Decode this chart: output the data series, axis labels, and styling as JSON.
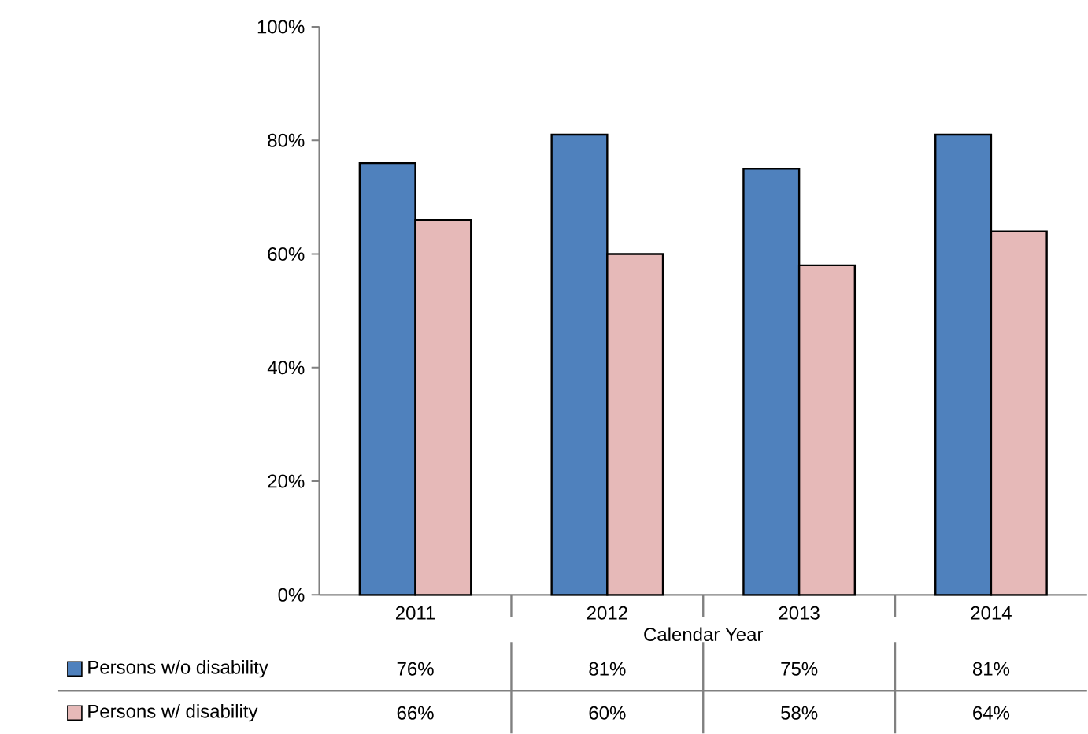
{
  "chart_data": {
    "type": "bar",
    "xlabel": "Calendar Year",
    "categories": [
      "2011",
      "2012",
      "2013",
      "2014"
    ],
    "series": [
      {
        "name": "Persons w/o disability",
        "color": "#4f81bd",
        "values": [
          76,
          81,
          75,
          81
        ],
        "value_labels": [
          "76%",
          "81%",
          "75%",
          "81%"
        ]
      },
      {
        "name": "Persons w/ disability",
        "color": "#e6b9b8",
        "values": [
          66,
          60,
          58,
          64
        ],
        "value_labels": [
          "66%",
          "60%",
          "58%",
          "64%"
        ]
      }
    ],
    "ylim": [
      0,
      100
    ],
    "yticks": [
      {
        "value": 0,
        "label": "0%"
      },
      {
        "value": 20,
        "label": "20%"
      },
      {
        "value": 40,
        "label": "40%"
      },
      {
        "value": 60,
        "label": "60%"
      },
      {
        "value": 80,
        "label": "80%"
      },
      {
        "value": 100,
        "label": "100%"
      }
    ],
    "legend": "bottom"
  }
}
